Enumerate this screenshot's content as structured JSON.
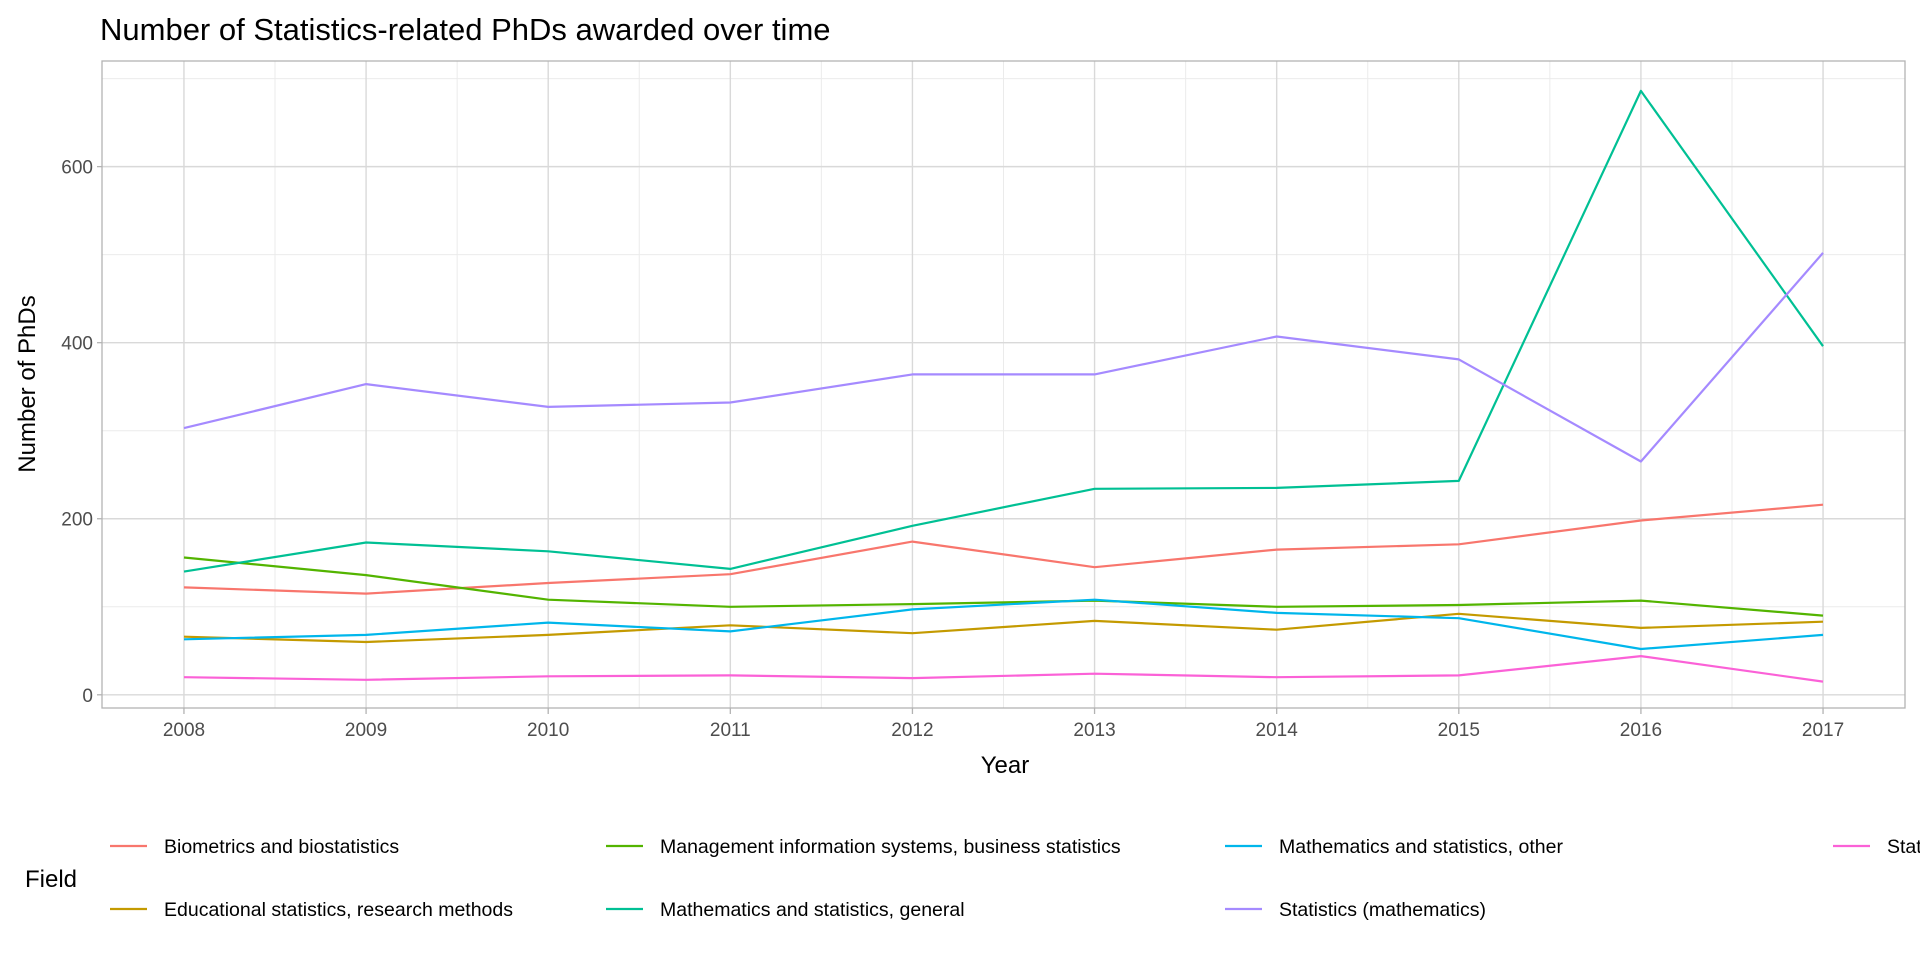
{
  "chart_data": {
    "type": "line",
    "title": "Number of Statistics-related PhDs awarded over time",
    "xlabel": "Year",
    "ylabel": "Number of PhDs",
    "x": [
      2008,
      2009,
      2010,
      2011,
      2012,
      2013,
      2014,
      2015,
      2016,
      2017
    ],
    "xlim": [
      2007.55,
      2017.45
    ],
    "ylim": [
      -15,
      720
    ],
    "yticks": [
      0,
      200,
      400,
      600
    ],
    "grid": true,
    "legend_title": "Field",
    "legend_position": "bottom",
    "series": [
      {
        "name": "Biometrics and biostatistics",
        "color": "#F8766D",
        "values": [
          122,
          115,
          127,
          137,
          174,
          145,
          165,
          171,
          198,
          216
        ]
      },
      {
        "name": "Educational statistics, research methods",
        "color": "#C49A00",
        "values": [
          66,
          60,
          68,
          79,
          70,
          84,
          74,
          92,
          76,
          83
        ]
      },
      {
        "name": "Management information systems, business statistics",
        "color": "#53B400",
        "values": [
          156,
          136,
          108,
          100,
          103,
          107,
          100,
          102,
          107,
          90
        ]
      },
      {
        "name": "Mathematics and statistics, general",
        "color": "#00C094",
        "values": [
          140,
          173,
          163,
          143,
          192,
          234,
          235,
          243,
          686,
          396
        ]
      },
      {
        "name": "Mathematics and statistics, other",
        "color": "#00B6EB",
        "values": [
          63,
          68,
          82,
          72,
          97,
          108,
          93,
          87,
          52,
          68
        ]
      },
      {
        "name": "Statistics (mathematics)",
        "color": "#A58AFF",
        "values": [
          303,
          353,
          327,
          332,
          364,
          364,
          407,
          381,
          265,
          502
        ]
      },
      {
        "name": "Statistics (social sciences)",
        "color": "#FB61D7",
        "values": [
          20,
          17,
          21,
          22,
          19,
          24,
          20,
          22,
          44,
          15
        ]
      }
    ]
  }
}
